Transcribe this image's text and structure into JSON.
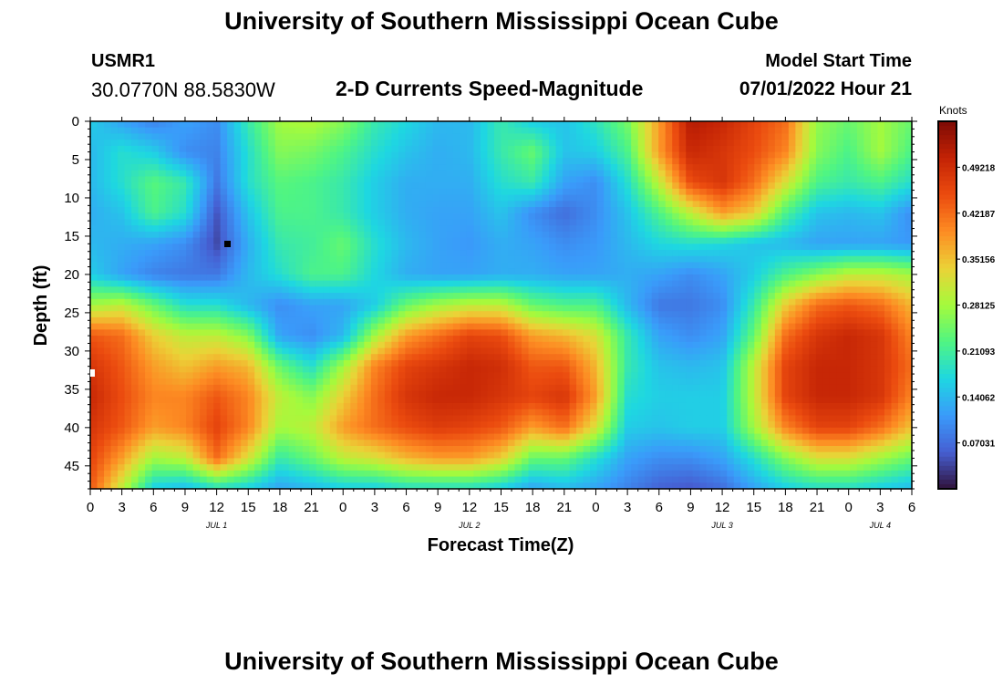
{
  "header": {
    "title": "University of Southern Mississippi Ocean Cube",
    "station": "USMR1",
    "coords": "30.0770N  88.5830W",
    "subtitle": "2-D Currents Speed-Magnitude",
    "model_start_label": "Model Start Time",
    "model_start_value": "07/01/2022 Hour 21"
  },
  "footer": {
    "title": "University of Southern Mississippi Ocean Cube"
  },
  "chart_data": {
    "type": "heatmap",
    "title": "2-D Currents Speed-Magnitude",
    "xlabel": "Forecast Time(Z)",
    "ylabel": "Depth (ft)",
    "x_range_hours": [
      0,
      78
    ],
    "y_range_ft": [
      0,
      48
    ],
    "x_tick_labels": [
      "0",
      "3",
      "6",
      "9",
      "12",
      "15",
      "18",
      "21",
      "0",
      "3",
      "6",
      "9",
      "12",
      "15",
      "18",
      "21",
      "0",
      "3",
      "6",
      "9",
      "12",
      "15",
      "18",
      "21",
      "0",
      "3",
      "6"
    ],
    "y_tick_labels": [
      "0",
      "5",
      "10",
      "15",
      "20",
      "25",
      "30",
      "35",
      "40",
      "45"
    ],
    "y_tick_values": [
      0,
      5,
      10,
      15,
      20,
      25,
      30,
      35,
      40,
      45
    ],
    "date_labels": [
      {
        "label": "JUL 1",
        "hour": 12
      },
      {
        "label": "JUL 2",
        "hour": 36
      },
      {
        "label": "JUL 3",
        "hour": 60
      },
      {
        "label": "JUL 4",
        "hour": 75
      }
    ],
    "colorbar": {
      "units": "Knots",
      "min": 0,
      "max": 0.5625,
      "tick_labels": [
        "0.49218",
        "0.42187",
        "0.35156",
        "0.28125",
        "0.21093",
        "0.14062",
        "0.07031"
      ],
      "tick_values": [
        0.49218,
        0.42187,
        0.35156,
        0.28125,
        0.21093,
        0.14062,
        0.07031
      ]
    },
    "speed_grid_hours": [
      0,
      3,
      6,
      9,
      12,
      15,
      18,
      21,
      24,
      27,
      30,
      33,
      36,
      39,
      42,
      45,
      48,
      51,
      54,
      57,
      60,
      63,
      66,
      69,
      72,
      75,
      78
    ],
    "speed_grid_depths_ft": [
      0,
      4,
      8,
      12,
      16,
      20,
      24,
      28,
      32,
      36,
      40,
      44,
      48
    ],
    "speed_grid_knots": [
      [
        0.16,
        0.12,
        0.09,
        0.12,
        0.1,
        0.2,
        0.28,
        0.29,
        0.26,
        0.2,
        0.17,
        0.14,
        0.14,
        0.2,
        0.16,
        0.15,
        0.19,
        0.25,
        0.38,
        0.52,
        0.5,
        0.46,
        0.42,
        0.27,
        0.24,
        0.28,
        0.24
      ],
      [
        0.14,
        0.18,
        0.16,
        0.1,
        0.09,
        0.18,
        0.26,
        0.25,
        0.22,
        0.18,
        0.15,
        0.13,
        0.14,
        0.2,
        0.24,
        0.15,
        0.16,
        0.22,
        0.38,
        0.5,
        0.48,
        0.45,
        0.4,
        0.26,
        0.22,
        0.28,
        0.22
      ],
      [
        0.14,
        0.18,
        0.23,
        0.2,
        0.08,
        0.18,
        0.23,
        0.22,
        0.2,
        0.16,
        0.13,
        0.13,
        0.13,
        0.18,
        0.2,
        0.12,
        0.1,
        0.18,
        0.3,
        0.45,
        0.48,
        0.42,
        0.32,
        0.22,
        0.2,
        0.22,
        0.18
      ],
      [
        0.13,
        0.15,
        0.22,
        0.18,
        0.05,
        0.15,
        0.22,
        0.22,
        0.2,
        0.16,
        0.13,
        0.12,
        0.12,
        0.15,
        0.1,
        0.07,
        0.1,
        0.15,
        0.22,
        0.3,
        0.38,
        0.34,
        0.22,
        0.15,
        0.14,
        0.15,
        0.1
      ],
      [
        0.14,
        0.13,
        0.12,
        0.1,
        0.04,
        0.13,
        0.2,
        0.21,
        0.24,
        0.18,
        0.14,
        0.12,
        0.11,
        0.13,
        0.12,
        0.1,
        0.11,
        0.14,
        0.17,
        0.18,
        0.17,
        0.15,
        0.14,
        0.12,
        0.12,
        0.12,
        0.11
      ],
      [
        0.16,
        0.12,
        0.09,
        0.08,
        0.08,
        0.14,
        0.18,
        0.22,
        0.22,
        0.17,
        0.13,
        0.12,
        0.12,
        0.13,
        0.13,
        0.12,
        0.12,
        0.13,
        0.12,
        0.1,
        0.12,
        0.16,
        0.22,
        0.26,
        0.3,
        0.3,
        0.28
      ],
      [
        0.28,
        0.3,
        0.24,
        0.18,
        0.18,
        0.14,
        0.1,
        0.12,
        0.12,
        0.16,
        0.24,
        0.28,
        0.3,
        0.3,
        0.24,
        0.22,
        0.22,
        0.14,
        0.08,
        0.08,
        0.1,
        0.2,
        0.34,
        0.42,
        0.44,
        0.42,
        0.36
      ],
      [
        0.44,
        0.42,
        0.34,
        0.3,
        0.3,
        0.26,
        0.12,
        0.1,
        0.14,
        0.28,
        0.38,
        0.42,
        0.46,
        0.45,
        0.38,
        0.36,
        0.32,
        0.2,
        0.12,
        0.1,
        0.12,
        0.24,
        0.42,
        0.48,
        0.5,
        0.48,
        0.4
      ],
      [
        0.48,
        0.44,
        0.38,
        0.35,
        0.38,
        0.36,
        0.24,
        0.18,
        0.28,
        0.4,
        0.46,
        0.48,
        0.5,
        0.49,
        0.44,
        0.44,
        0.36,
        0.2,
        0.15,
        0.14,
        0.15,
        0.3,
        0.46,
        0.5,
        0.5,
        0.48,
        0.42
      ],
      [
        0.5,
        0.45,
        0.4,
        0.4,
        0.44,
        0.4,
        0.3,
        0.26,
        0.34,
        0.42,
        0.48,
        0.5,
        0.5,
        0.48,
        0.46,
        0.48,
        0.38,
        0.18,
        0.16,
        0.16,
        0.16,
        0.3,
        0.46,
        0.5,
        0.5,
        0.48,
        0.4
      ],
      [
        0.48,
        0.44,
        0.38,
        0.4,
        0.46,
        0.4,
        0.28,
        0.3,
        0.38,
        0.42,
        0.45,
        0.47,
        0.46,
        0.44,
        0.38,
        0.42,
        0.32,
        0.16,
        0.15,
        0.16,
        0.16,
        0.28,
        0.4,
        0.46,
        0.46,
        0.42,
        0.35
      ],
      [
        0.46,
        0.38,
        0.28,
        0.3,
        0.42,
        0.32,
        0.2,
        0.24,
        0.3,
        0.32,
        0.36,
        0.38,
        0.38,
        0.34,
        0.24,
        0.24,
        0.18,
        0.12,
        0.1,
        0.1,
        0.12,
        0.18,
        0.26,
        0.32,
        0.32,
        0.28,
        0.24
      ],
      [
        0.44,
        0.3,
        0.16,
        0.14,
        0.18,
        0.16,
        0.12,
        0.14,
        0.16,
        0.16,
        0.18,
        0.18,
        0.18,
        0.16,
        0.12,
        0.14,
        0.12,
        0.09,
        0.06,
        0.05,
        0.07,
        0.12,
        0.16,
        0.18,
        0.18,
        0.16,
        0.14
      ]
    ]
  }
}
